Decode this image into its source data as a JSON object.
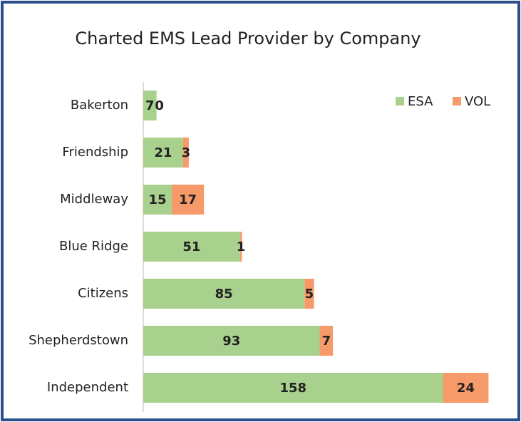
{
  "chart_data": {
    "type": "stacked-barh",
    "title": "Charted EMS Lead Provider by Company",
    "categories": [
      "Bakerton",
      "Friendship",
      "Middleway",
      "Blue Ridge",
      "Citizens",
      "Shepherdstown",
      "Independent"
    ],
    "series": [
      {
        "name": "ESA",
        "color": "#a9d18e",
        "values": [
          7,
          21,
          15,
          51,
          85,
          93,
          158
        ]
      },
      {
        "name": "VOL",
        "color": "#f79a6a",
        "values": [
          0,
          3,
          17,
          1,
          5,
          7,
          24
        ]
      }
    ],
    "xlim": [
      0,
      195
    ],
    "legend": "top-right"
  }
}
